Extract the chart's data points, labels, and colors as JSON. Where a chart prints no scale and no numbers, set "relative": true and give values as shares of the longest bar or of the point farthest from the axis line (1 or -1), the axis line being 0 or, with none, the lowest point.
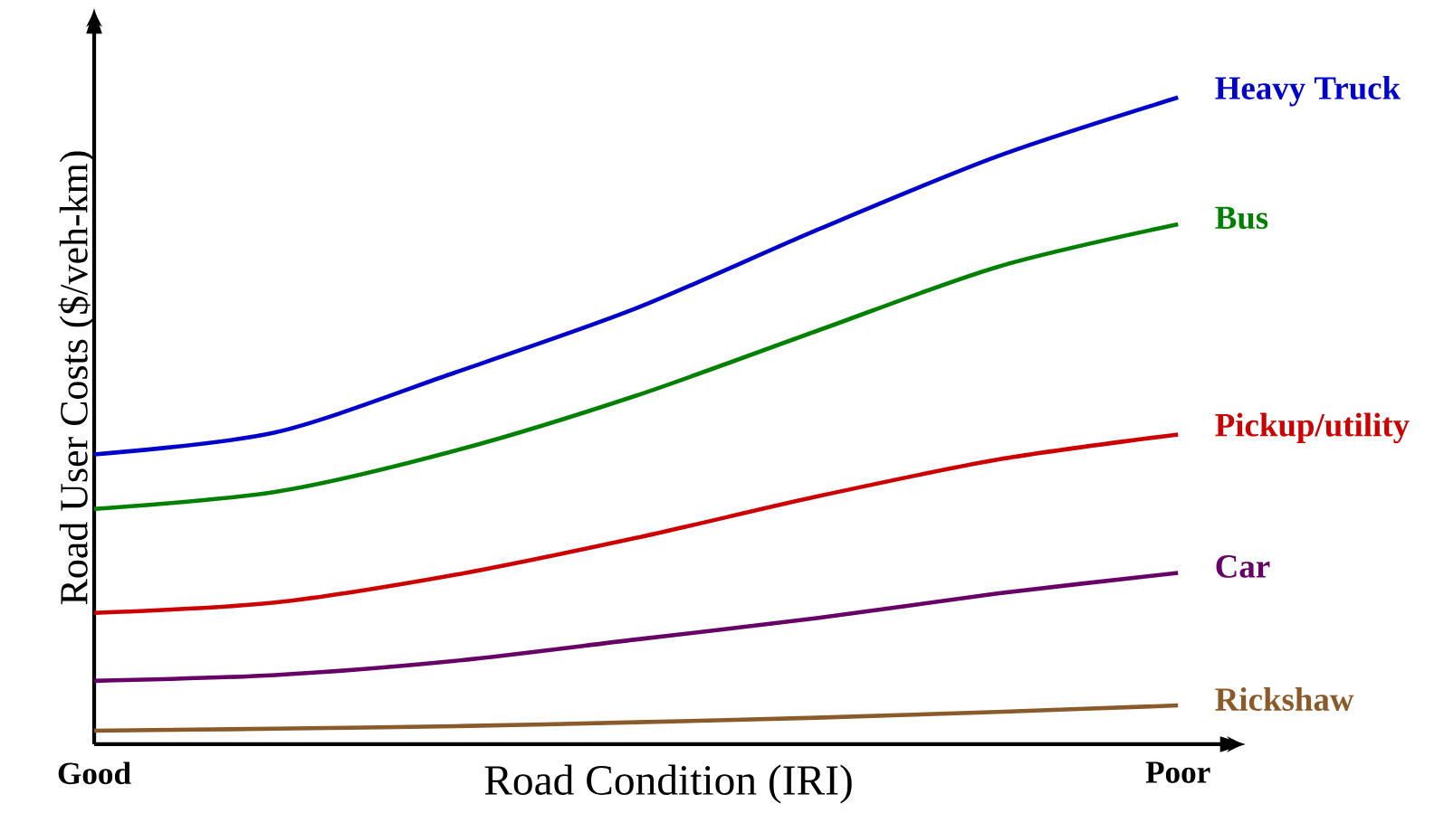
{
  "chart_data": {
    "type": "line",
    "relative": true,
    "xlabel": "Road Condition (IRI)",
    "ylabel": "Road User Costs ($/veh-km)",
    "categories": [
      "Good",
      null,
      null,
      null,
      null,
      null,
      "Poor"
    ],
    "series": [
      {
        "name": "Heavy Truck",
        "color": "#0000cc",
        "values": [
          0.448,
          0.482,
          0.575,
          0.674,
          0.795,
          0.909,
          1.0
        ]
      },
      {
        "name": "Bus",
        "color": "#008000",
        "values": [
          0.364,
          0.39,
          0.454,
          0.539,
          0.639,
          0.738,
          0.804
        ]
      },
      {
        "name": "Pickup/utility",
        "color": "#cc0000",
        "values": [
          0.203,
          0.219,
          0.262,
          0.319,
          0.383,
          0.44,
          0.479
        ]
      },
      {
        "name": "Car",
        "color": "#660066",
        "values": [
          0.098,
          0.107,
          0.129,
          0.162,
          0.195,
          0.233,
          0.265
        ]
      },
      {
        "name": "Rickshaw",
        "color": "#8b5a2b",
        "values": [
          0.021,
          0.024,
          0.028,
          0.034,
          0.041,
          0.05,
          0.06
        ]
      }
    ]
  }
}
